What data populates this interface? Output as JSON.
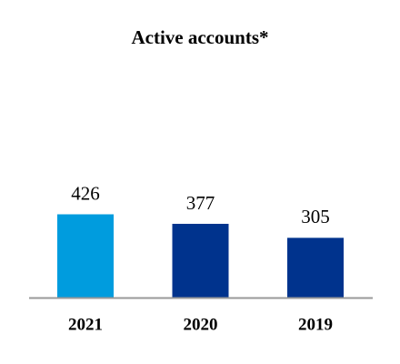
{
  "chart_data": {
    "type": "bar",
    "title": "Active accounts*",
    "categories": [
      "2021",
      "2020",
      "2019"
    ],
    "values": [
      426,
      377,
      305
    ],
    "colors": [
      "#009cde",
      "#00338d",
      "#00338d"
    ]
  }
}
